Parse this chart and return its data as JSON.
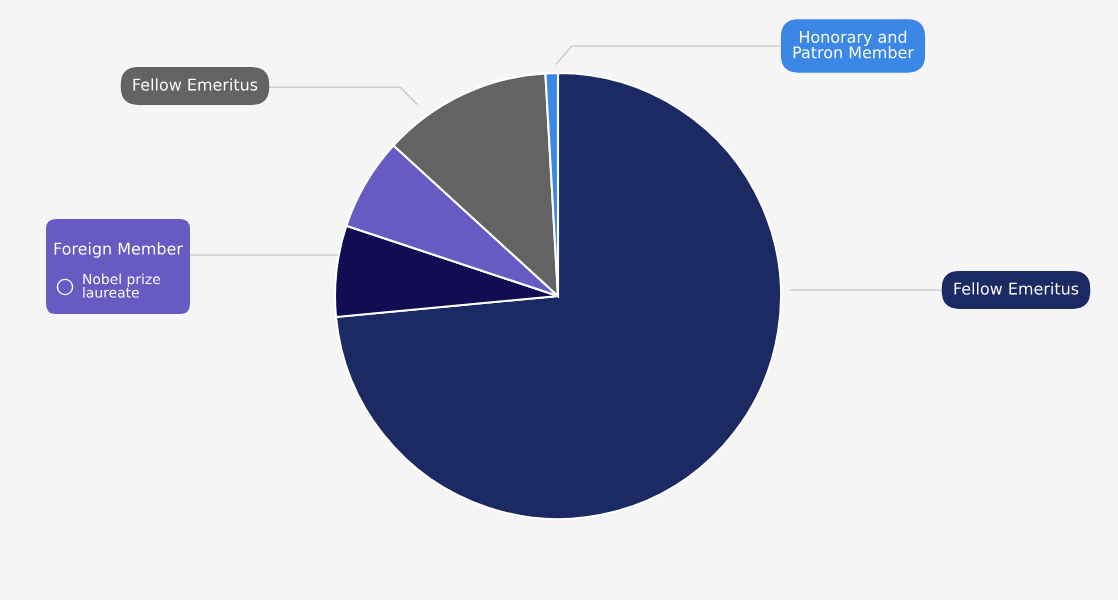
{
  "chart_data": {
    "type": "pie",
    "categories": [
      "Fellow Emeritus",
      "Foreign Member",
      "Nobel prize laureate",
      "Fellow Emeritus",
      "Honorary and Patron Member"
    ],
    "values": [
      73.5,
      6.6,
      6.7,
      12.3,
      0.9
    ],
    "colors": [
      "#1b2a63",
      "#120c52",
      "#675bc3",
      "#636363",
      "#3b87e6"
    ]
  }
}
